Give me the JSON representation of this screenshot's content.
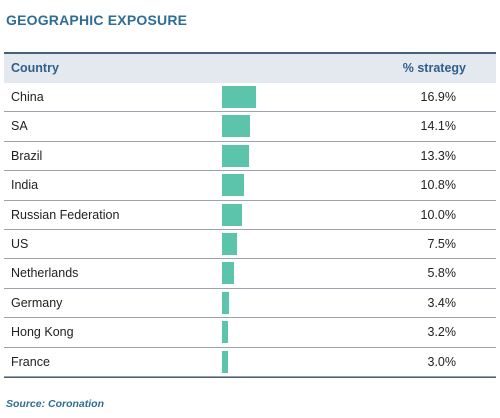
{
  "chart_data": {
    "type": "table",
    "title": "GEOGRAPHIC EXPOSURE",
    "columns": [
      "Country",
      "% strategy"
    ],
    "categories": [
      "China",
      "SA",
      "Brazil",
      "India",
      "Russian Federation",
      "US",
      "Netherlands",
      "Germany",
      "Hong Kong",
      "France"
    ],
    "values": [
      16.9,
      14.1,
      13.3,
      10.8,
      10.0,
      7.5,
      5.8,
      3.4,
      3.2,
      3.0
    ],
    "value_labels": [
      "16.9%",
      "14.1%",
      "13.3%",
      "10.8%",
      "10.0%",
      "7.5%",
      "5.8%",
      "3.4%",
      "3.2%",
      "3.0%"
    ],
    "bar_color": "#5dc4ac"
  },
  "source": "Source: Coronation"
}
